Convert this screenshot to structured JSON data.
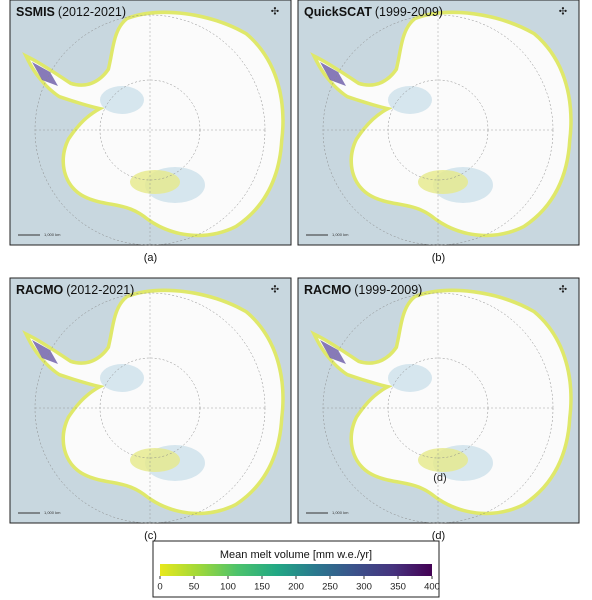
{
  "panels": [
    {
      "name": "SSMIS",
      "period": "(2012-2021)",
      "caption": "(a)",
      "scale": "1,000 km"
    },
    {
      "name": "QuickSCAT",
      "period": "(1999-2009)",
      "caption": "(b)",
      "scale": "1,000 km"
    },
    {
      "name": "RACMO",
      "period": "(2012-2021)",
      "caption": "(c)",
      "scale": "1,000 km"
    },
    {
      "name": "RACMO",
      "period": "(1999-2009)",
      "caption": "(d)",
      "scale": "1,000 km",
      "inner_label": "(d)"
    }
  ],
  "colorbar": {
    "label": "Mean melt volume [mm w.e./yr]",
    "lim": [
      0,
      400
    ],
    "ticks": [
      0,
      50,
      100,
      150,
      200,
      250,
      300,
      350,
      400
    ],
    "colors": [
      "#e8e81c",
      "#9fd83a",
      "#4cc26c",
      "#22a884",
      "#2a788e",
      "#3b528b",
      "#46337e",
      "#440154"
    ]
  }
}
